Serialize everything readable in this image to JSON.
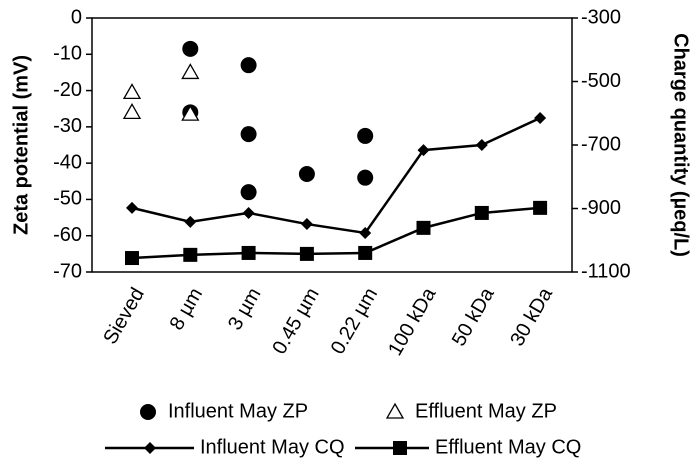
{
  "chart_data": {
    "type": "line",
    "categories": [
      "Sieved",
      "8 µm",
      "3 µm",
      "0.45 µm",
      "0.22 µm",
      "100 kDa",
      "50 kDa",
      "30 kDa"
    ],
    "y_label": "Zeta potential (mV)",
    "y2_label": "Charge quantity (µeq/L)",
    "ylim": [
      -70,
      0
    ],
    "yticks": [
      0,
      -10,
      -20,
      -30,
      -40,
      -50,
      -60,
      -70
    ],
    "y2lim": [
      -1100,
      -300
    ],
    "y2ticks": [
      -300,
      -500,
      -700,
      -900,
      -1100
    ],
    "series": [
      {
        "name": "Influent May ZP",
        "color": "#000000",
        "marker": "circle",
        "line": false,
        "axis": "y",
        "x": [
          "8 µm",
          "8 µm",
          "3 µm",
          "3 µm",
          "3 µm",
          "0.45 µm",
          "0.22 µm",
          "0.22 µm"
        ],
        "values": [
          -8.5,
          -26,
          -13,
          -32,
          -48,
          -43,
          -32.5,
          -44
        ]
      },
      {
        "name": "Effluent May ZP",
        "color": "#000000",
        "marker": "triangle",
        "line": false,
        "axis": "y",
        "x": [
          "Sieved",
          "Sieved",
          "8 µm",
          "8 µm"
        ],
        "values": [
          -20.5,
          -26,
          -15,
          -26.5
        ]
      },
      {
        "name": "Influent May CQ",
        "color": "#000000",
        "marker": "diamond",
        "line": true,
        "axis": "y2",
        "values": [
          -898,
          -942,
          -914,
          -949,
          -977,
          -716,
          -700,
          -615
        ]
      },
      {
        "name": "Effluent May CQ",
        "color": "#000000",
        "marker": "square",
        "line": true,
        "axis": "y2",
        "values": [
          -1056,
          -1046,
          -1040,
          -1043,
          -1040,
          -961,
          -914,
          -898
        ]
      }
    ]
  }
}
